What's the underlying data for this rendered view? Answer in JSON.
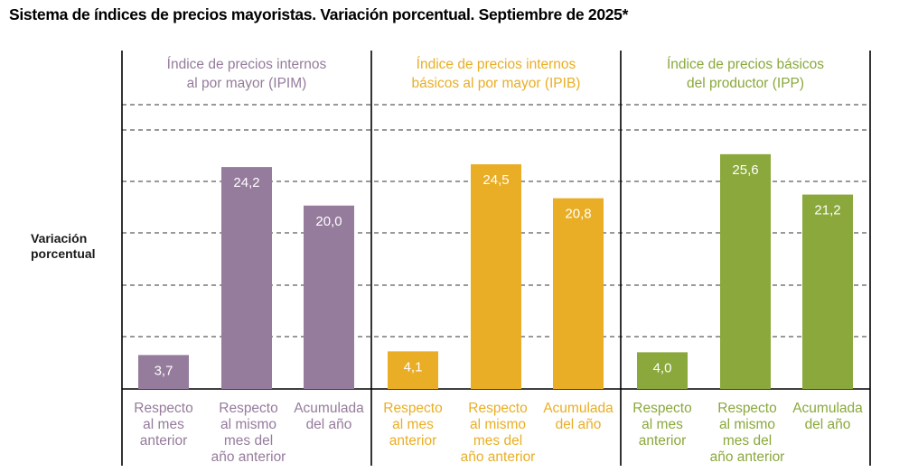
{
  "title": "Sistema de índices de precios mayoristas. Variación porcentual. Septiembre de 2025*",
  "ylabel_lines": [
    "Variación",
    "porcentual"
  ],
  "colors": {
    "ipim": "#957b9c",
    "ipib": "#e9ae25",
    "ipp": "#8aa83c",
    "label": "#ffffff",
    "grid": "#333333"
  },
  "chart_data": {
    "type": "bar",
    "title": "Sistema de índices de precios mayoristas. Variación porcentual. Septiembre de 2025*",
    "ylabel": "Variación porcentual",
    "ylim": [
      0,
      31
    ],
    "grid": true,
    "categories": [
      [
        "Respecto",
        "al mes",
        "anterior"
      ],
      [
        "Respecto",
        "al mismo",
        "mes del",
        "año anterior"
      ],
      [
        "Acumulada",
        "del año"
      ]
    ],
    "series": [
      {
        "name": "IPIM",
        "header": [
          "Índice de precios internos",
          "al por mayor (IPIM)"
        ],
        "color_key": "ipim",
        "values": [
          3.7,
          24.2,
          20.0
        ],
        "labels": [
          "3,7",
          "24,2",
          "20,0"
        ]
      },
      {
        "name": "IPIB",
        "header": [
          "Índice de precios internos",
          "básicos al por mayor (IPIB)"
        ],
        "color_key": "ipib",
        "values": [
          4.1,
          24.5,
          20.8
        ],
        "labels": [
          "4,1",
          "24,5",
          "20,8"
        ]
      },
      {
        "name": "IPP",
        "header": [
          "Índice de precios básicos",
          "del productor (IPP)"
        ],
        "color_key": "ipp",
        "values": [
          4.0,
          25.6,
          21.2
        ],
        "labels": [
          "4,0",
          "25,6",
          "21,2"
        ]
      }
    ]
  }
}
